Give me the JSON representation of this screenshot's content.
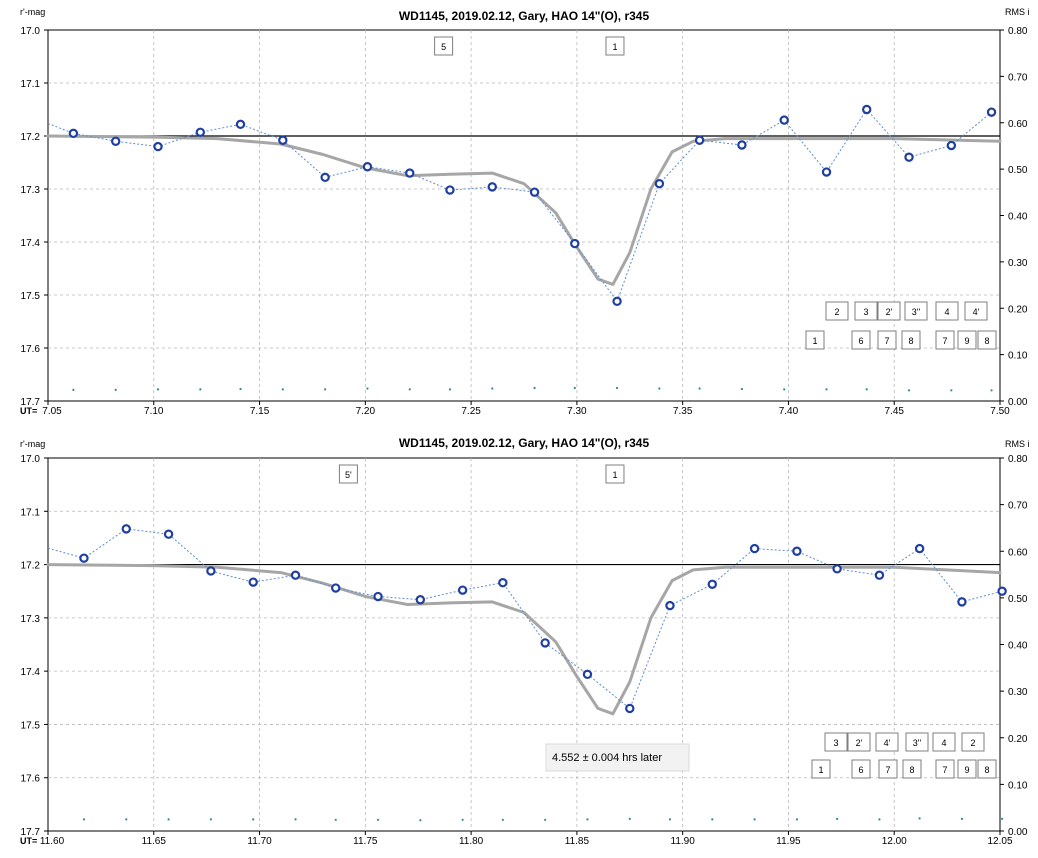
{
  "chart_data": [
    {
      "type": "line",
      "title": "WD1145, 2019.02.12, Gary, HAO 14\"(O), r345",
      "ylabel_left": "r'-mag",
      "ylabel_right": "RMS i",
      "xlabel": "UT=",
      "xlim": [
        7.05,
        7.5
      ],
      "ylim_left": [
        17.7,
        17.0
      ],
      "ylim_right": [
        0.0,
        0.8
      ],
      "x_ticks": [
        "7.05",
        "7.10",
        "7.15",
        "7.20",
        "7.25",
        "7.30",
        "7.35",
        "7.40",
        "7.45",
        "7.50"
      ],
      "y_ticks_left": [
        "17.0",
        "17.1",
        "17.2",
        "17.3",
        "17.4",
        "17.5",
        "17.6",
        "17.7"
      ],
      "y_ticks_right": [
        "0.80",
        "0.70",
        "0.60",
        "0.50",
        "0.40",
        "0.30",
        "0.20",
        "0.10",
        "0.00"
      ],
      "grid": true,
      "reference_line": 17.2,
      "series": [
        {
          "kind": "points",
          "x": [
            7.062,
            7.082,
            7.102,
            7.122,
            7.141,
            7.161,
            7.181,
            7.201,
            7.221,
            7.24,
            7.26,
            7.28,
            7.299,
            7.319,
            7.339,
            7.358,
            7.378,
            7.398,
            7.418,
            7.437,
            7.457,
            7.477,
            7.496
          ],
          "values": [
            17.195,
            17.21,
            17.22,
            17.193,
            17.178,
            17.208,
            17.278,
            17.258,
            17.27,
            17.302,
            17.296,
            17.306,
            17.403,
            17.512,
            17.29,
            17.208,
            17.217,
            17.17,
            17.268,
            17.15,
            17.24,
            17.218,
            17.155
          ]
        },
        {
          "kind": "model",
          "x": [
            7.05,
            7.1,
            7.13,
            7.16,
            7.18,
            7.2,
            7.22,
            7.24,
            7.26,
            7.275,
            7.29,
            7.3,
            7.31,
            7.317,
            7.325,
            7.335,
            7.345,
            7.355,
            7.37,
            7.4,
            7.45,
            7.5
          ],
          "values": [
            17.2,
            17.202,
            17.205,
            17.215,
            17.235,
            17.26,
            17.275,
            17.272,
            17.27,
            17.29,
            17.345,
            17.41,
            17.47,
            17.48,
            17.42,
            17.3,
            17.23,
            17.21,
            17.205,
            17.205,
            17.205,
            17.21
          ]
        },
        {
          "kind": "rms",
          "x": [
            7.062,
            7.082,
            7.102,
            7.122,
            7.141,
            7.161,
            7.181,
            7.201,
            7.221,
            7.24,
            7.26,
            7.28,
            7.299,
            7.319,
            7.339,
            7.358,
            7.378,
            7.398,
            7.418,
            7.437,
            7.457,
            7.477,
            7.496
          ],
          "values": [
            0.024,
            0.024,
            0.025,
            0.025,
            0.026,
            0.025,
            0.025,
            0.027,
            0.025,
            0.025,
            0.027,
            0.028,
            0.028,
            0.028,
            0.027,
            0.027,
            0.026,
            0.025,
            0.025,
            0.025,
            0.023,
            0.023,
            0.023
          ]
        }
      ],
      "annotations": {
        "top_boxes": [
          {
            "text": "5",
            "x": 7.237
          },
          {
            "text": "1",
            "x": 7.318
          }
        ],
        "bottom_row1": [
          "2",
          "3",
          "2'",
          "3''",
          "4",
          "4'"
        ],
        "bottom_row2": [
          "1",
          "6",
          "7",
          "8",
          "7",
          "9",
          "8"
        ]
      }
    },
    {
      "type": "line",
      "title": "WD1145, 2019.02.12, Gary, HAO 14\"(O), r345",
      "ylabel_left": "r'-mag",
      "ylabel_right": "RMS i",
      "xlabel": "UT=",
      "xlim": [
        11.6,
        12.05
      ],
      "ylim_left": [
        17.7,
        17.0
      ],
      "ylim_right": [
        0.0,
        0.8
      ],
      "x_ticks": [
        "11.60",
        "11.65",
        "11.70",
        "11.75",
        "11.80",
        "11.85",
        "11.90",
        "11.95",
        "12.00",
        "12.05"
      ],
      "y_ticks_left": [
        "17.0",
        "17.1",
        "17.2",
        "17.3",
        "17.4",
        "17.5",
        "17.6",
        "17.7"
      ],
      "y_ticks_right": [
        "0.80",
        "0.70",
        "0.60",
        "0.50",
        "0.40",
        "0.30",
        "0.20",
        "0.10",
        "0.00"
      ],
      "grid": true,
      "reference_line": 17.2,
      "series": [
        {
          "kind": "points",
          "x": [
            11.617,
            11.637,
            11.657,
            11.677,
            11.697,
            11.717,
            11.736,
            11.756,
            11.776,
            11.796,
            11.815,
            11.835,
            11.855,
            11.875,
            11.894,
            11.914,
            11.934,
            11.954,
            11.973,
            11.993,
            12.012,
            12.032,
            12.051
          ],
          "values": [
            17.188,
            17.133,
            17.143,
            17.212,
            17.233,
            17.22,
            17.244,
            17.26,
            17.266,
            17.248,
            17.234,
            17.347,
            17.406,
            17.47,
            17.277,
            17.237,
            17.17,
            17.175,
            17.208,
            17.22,
            17.17,
            17.27,
            17.25
          ]
        },
        {
          "kind": "model",
          "x": [
            11.6,
            11.65,
            11.68,
            11.71,
            11.73,
            11.75,
            11.77,
            11.79,
            11.81,
            11.825,
            11.84,
            11.85,
            11.86,
            11.867,
            11.875,
            11.885,
            11.895,
            11.905,
            11.92,
            11.95,
            12.0,
            12.05
          ],
          "values": [
            17.2,
            17.202,
            17.205,
            17.215,
            17.235,
            17.26,
            17.275,
            17.272,
            17.27,
            17.29,
            17.345,
            17.41,
            17.47,
            17.48,
            17.42,
            17.3,
            17.23,
            17.21,
            17.205,
            17.205,
            17.205,
            17.215
          ]
        },
        {
          "kind": "rms",
          "x": [
            11.617,
            11.637,
            11.657,
            11.677,
            11.697,
            11.717,
            11.736,
            11.756,
            11.776,
            11.796,
            11.815,
            11.835,
            11.855,
            11.875,
            11.894,
            11.914,
            11.934,
            11.954,
            11.973,
            11.993,
            12.012,
            12.032,
            12.051
          ],
          "values": [
            0.025,
            0.025,
            0.025,
            0.025,
            0.025,
            0.025,
            0.024,
            0.024,
            0.023,
            0.024,
            0.024,
            0.024,
            0.025,
            0.026,
            0.025,
            0.025,
            0.025,
            0.025,
            0.026,
            0.025,
            0.027,
            0.026,
            0.026
          ]
        }
      ],
      "annotations": {
        "top_boxes": [
          {
            "text": "5'",
            "x": 11.742
          },
          {
            "text": "1",
            "x": 11.868
          }
        ],
        "bottom_row1": [
          "3",
          "2'",
          "4'",
          "3''",
          "4",
          "2"
        ],
        "bottom_row2": [
          "1",
          "6",
          "7",
          "8",
          "7",
          "9",
          "8"
        ],
        "note": "4.552 ± 0.004 hrs later"
      }
    }
  ]
}
